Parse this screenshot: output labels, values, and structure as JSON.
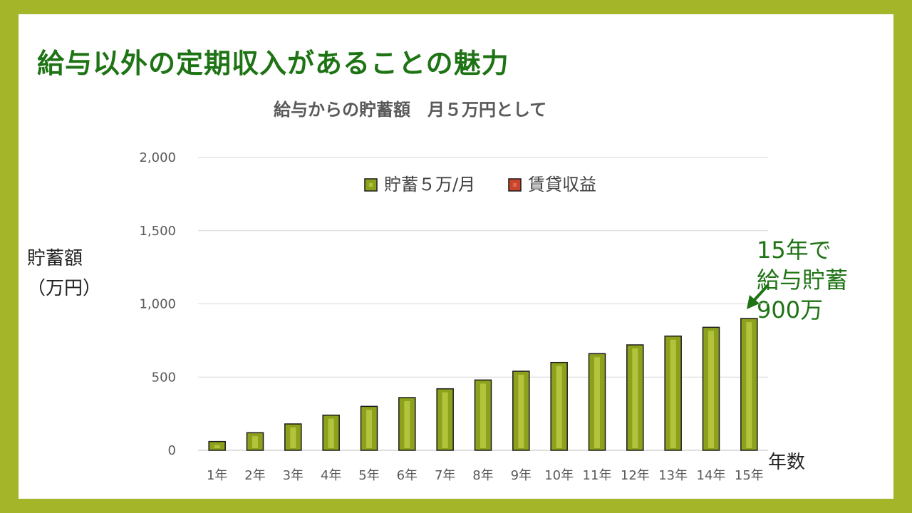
{
  "slide": {
    "title": "給与以外の定期収入があることの魅力",
    "y_axis_label_line1": "貯蓄額",
    "y_axis_label_line2": "（万円）",
    "x_axis_label": "年数",
    "annotation": {
      "line1": "15年で",
      "line2": "給与貯蓄",
      "line3": "900万"
    }
  },
  "colors": {
    "background_frame": "#a4b52a",
    "title_green": "#1e7314",
    "bar_fill": "#8ea11c",
    "bar_highlight": "#b3c43c",
    "bar_stroke": "#1a1a1a",
    "rental_fill": "#c8442a",
    "gridline": "#d9d9d9"
  },
  "chart_data": {
    "type": "bar",
    "title": "給与からの貯蓄額　月５万円として",
    "xlabel": "年数",
    "ylabel": "貯蓄額（万円）",
    "categories": [
      "1年",
      "2年",
      "3年",
      "4年",
      "5年",
      "6年",
      "7年",
      "8年",
      "9年",
      "10年",
      "11年",
      "12年",
      "13年",
      "14年",
      "15年"
    ],
    "series": [
      {
        "name": "貯蓄５万/月",
        "values": [
          60,
          120,
          180,
          240,
          300,
          360,
          420,
          480,
          540,
          600,
          660,
          720,
          780,
          840,
          900
        ]
      },
      {
        "name": "賃貸収益",
        "values": [
          0,
          0,
          0,
          0,
          0,
          0,
          0,
          0,
          0,
          0,
          0,
          0,
          0,
          0,
          0
        ]
      }
    ],
    "y_ticks": [
      "0",
      "500",
      "1,000",
      "1,500",
      "2,000"
    ],
    "y_tick_values": [
      0,
      500,
      1000,
      1500,
      2000
    ],
    "ylim": [
      0,
      2000
    ],
    "grid": true,
    "legend_position": "top"
  }
}
